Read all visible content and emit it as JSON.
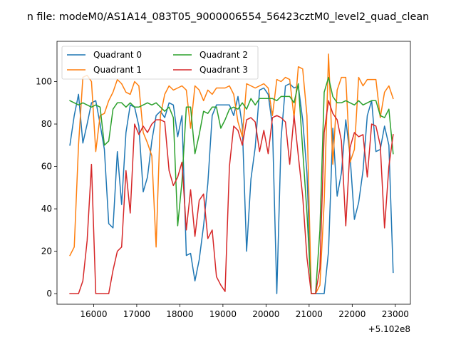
{
  "chart_data": {
    "type": "line",
    "title": "n file: modeM0/AS1A14_083T05_9000006554_56423cztM0_level2_quad_clean",
    "xlabel": "",
    "ylabel": "",
    "x_offset_label": "+5.102e8",
    "x_offset": 510200000,
    "xlim": [
      15150,
      23350
    ],
    "ylim": [
      -5,
      119
    ],
    "xticks": [
      16000,
      17000,
      18000,
      19000,
      20000,
      21000,
      22000,
      23000
    ],
    "xtick_labels": [
      "16000",
      "17000",
      "18000",
      "19000",
      "20000",
      "21000",
      "22000",
      "23000"
    ],
    "yticks": [
      0,
      20,
      40,
      60,
      80,
      100
    ],
    "ytick_labels": [
      "0",
      "20",
      "40",
      "60",
      "80",
      "100"
    ],
    "grid": false,
    "legend": {
      "position": "top-left",
      "columns": 2
    },
    "x": [
      15450,
      15550,
      15650,
      15750,
      15850,
      15950,
      16050,
      16150,
      16250,
      16350,
      16450,
      16550,
      16650,
      16750,
      16850,
      16950,
      17050,
      17150,
      17250,
      17350,
      17450,
      17550,
      17650,
      17750,
      17850,
      17950,
      18050,
      18150,
      18250,
      18350,
      18450,
      18550,
      18650,
      18750,
      18850,
      18950,
      19050,
      19150,
      19250,
      19350,
      19450,
      19550,
      19650,
      19750,
      19850,
      19950,
      20050,
      20150,
      20250,
      20350,
      20450,
      20550,
      20650,
      20750,
      20850,
      20950,
      21050,
      21150,
      21250,
      21350,
      21450,
      21550,
      21650,
      21750,
      21850,
      21950,
      22050,
      22150,
      22250,
      22350,
      22450,
      22550,
      22650,
      22750,
      22850,
      22950
    ],
    "series": [
      {
        "name": "Quadrant 0",
        "color": "#1f77b4",
        "values": [
          70,
          84,
          94,
          71,
          80,
          90,
          91,
          80,
          68,
          33,
          31,
          67,
          42,
          76,
          89,
          88,
          79,
          48,
          55,
          72,
          84,
          86,
          83,
          90,
          89,
          74,
          84,
          18,
          19,
          6,
          16,
          32,
          52,
          84,
          89,
          89,
          89,
          89,
          84,
          93,
          79,
          20,
          54,
          69,
          96,
          97,
          94,
          79,
          0,
          73,
          98,
          99,
          97,
          98,
          82,
          57,
          0,
          0,
          0,
          0,
          20,
          78,
          46,
          57,
          82,
          65,
          35,
          43,
          58,
          84,
          91,
          67,
          68,
          79,
          70,
          10
        ]
      },
      {
        "name": "Quadrant 1",
        "color": "#ff7f0e",
        "values": [
          18,
          22,
          70,
          102,
          103,
          100,
          67,
          84,
          85,
          91,
          95,
          101,
          99,
          95,
          94,
          100,
          98,
          76,
          71,
          65,
          22,
          84,
          94,
          98,
          96,
          97,
          98,
          96,
          78,
          98,
          96,
          91,
          96,
          94,
          97,
          97,
          97,
          98,
          94,
          81,
          74,
          99,
          98,
          97,
          98,
          99,
          97,
          84,
          101,
          100,
          102,
          101,
          83,
          107,
          106,
          84,
          0,
          0,
          4,
          43,
          113,
          61,
          96,
          102,
          102,
          62,
          68,
          102,
          98,
          101,
          101,
          101,
          83,
          95,
          98,
          92
        ]
      },
      {
        "name": "Quadrant 2",
        "color": "#2ca02c",
        "values": [
          91,
          90,
          89,
          90,
          89,
          88,
          89,
          88,
          70,
          72,
          87,
          90,
          90,
          88,
          90,
          88,
          88,
          89,
          90,
          89,
          90,
          88,
          86,
          88,
          83,
          32,
          53,
          88,
          88,
          66,
          75,
          86,
          85,
          88,
          88,
          78,
          82,
          87,
          88,
          87,
          90,
          87,
          92,
          89,
          92,
          92,
          92,
          92,
          91,
          93,
          93,
          93,
          90,
          99,
          68,
          38,
          0,
          0,
          30,
          95,
          102,
          93,
          90,
          90,
          91,
          90,
          89,
          91,
          89,
          90,
          91,
          91,
          84,
          83,
          87,
          66
        ]
      },
      {
        "name": "Quadrant 3",
        "color": "#d62728",
        "values": [
          0,
          0,
          0,
          6,
          25,
          61,
          0,
          0,
          0,
          0,
          11,
          20,
          22,
          58,
          38,
          80,
          75,
          79,
          76,
          80,
          82,
          82,
          81,
          58,
          51,
          55,
          62,
          30,
          49,
          27,
          44,
          47,
          26,
          30,
          8,
          4,
          1,
          60,
          79,
          77,
          70,
          82,
          83,
          81,
          67,
          77,
          66,
          83,
          84,
          83,
          81,
          61,
          84,
          65,
          46,
          17,
          0,
          0,
          12,
          76,
          91,
          85,
          82,
          72,
          32,
          69,
          76,
          74,
          75,
          55,
          80,
          79,
          70,
          31,
          60,
          75
        ]
      }
    ]
  }
}
